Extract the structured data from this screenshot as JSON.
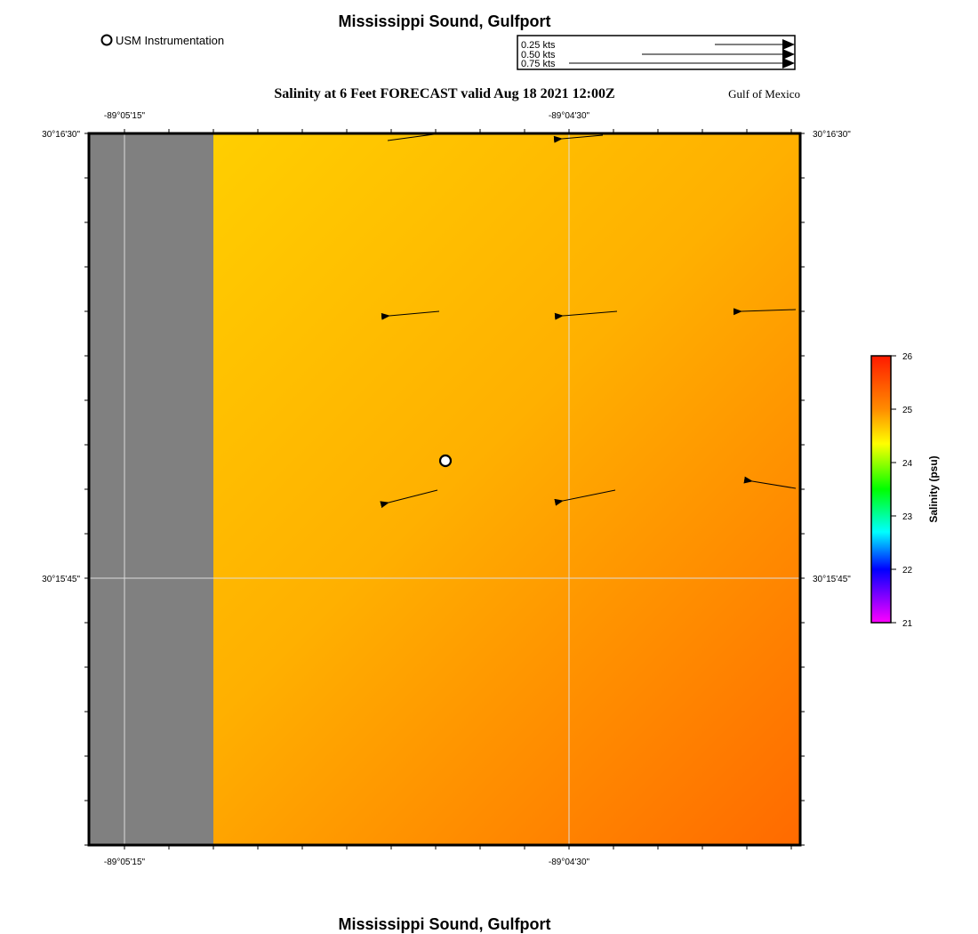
{
  "header": {
    "title": "Mississippi Sound, Gulfport",
    "legend_marker_label": "USM Instrumentation",
    "subtitle": "Salinity at 6 Feet FORECAST valid Aug 18 2021 12:00Z",
    "region_label": "Gulf of Mexico"
  },
  "footer": {
    "title": "Mississippi Sound, Gulfport"
  },
  "speed_legend": {
    "entries": [
      {
        "label": "0.25 kts",
        "speed": 0.25
      },
      {
        "label": "0.50 kts",
        "speed": 0.5
      },
      {
        "label": "0.75 kts",
        "speed": 0.75
      }
    ]
  },
  "map": {
    "lon_ticks": [
      "-89°05'15\"",
      "-89°04'30\""
    ],
    "lat_ticks": [
      "30°16'30\"",
      "30°15'45\""
    ],
    "land_color": "#808080",
    "gradient_colors": [
      "#ffd500",
      "#ffb000",
      "#ff6a00"
    ],
    "instrument_station": {
      "label": "USM Instrumentation"
    }
  },
  "colorbar": {
    "label": "Salinity (psu)",
    "ticks": [
      "26",
      "25",
      "24",
      "23",
      "22",
      "21"
    ],
    "min": 21,
    "max": 26,
    "colors": [
      "#ff1a00",
      "#ff8c00",
      "#ffff00",
      "#00ff00",
      "#00ffff",
      "#0000ff",
      "#ff00ff"
    ]
  },
  "chart_data": {
    "type": "map",
    "title": "Salinity at 6 Feet FORECAST valid Aug 18 2021 12:00Z",
    "variable": "Salinity (psu)",
    "color_scale_range": [
      21,
      26
    ],
    "current_vectors_kts": [
      {
        "row": 1,
        "col": 1,
        "speed": 0.21,
        "direction": "W"
      },
      {
        "row": 1,
        "col": 2,
        "speed": 0.21,
        "direction": "W"
      },
      {
        "row": 2,
        "col": 1,
        "speed": 0.26,
        "direction": "W"
      },
      {
        "row": 2,
        "col": 2,
        "speed": 0.27,
        "direction": "W"
      },
      {
        "row": 2,
        "col": 3,
        "speed": 0.27,
        "direction": "W"
      },
      {
        "row": 3,
        "col": 1,
        "speed": 0.26,
        "direction": "WSW"
      },
      {
        "row": 3,
        "col": 2,
        "speed": 0.27,
        "direction": "WSW"
      },
      {
        "row": 3,
        "col": 3,
        "speed": 0.23,
        "direction": "WNW"
      }
    ]
  }
}
